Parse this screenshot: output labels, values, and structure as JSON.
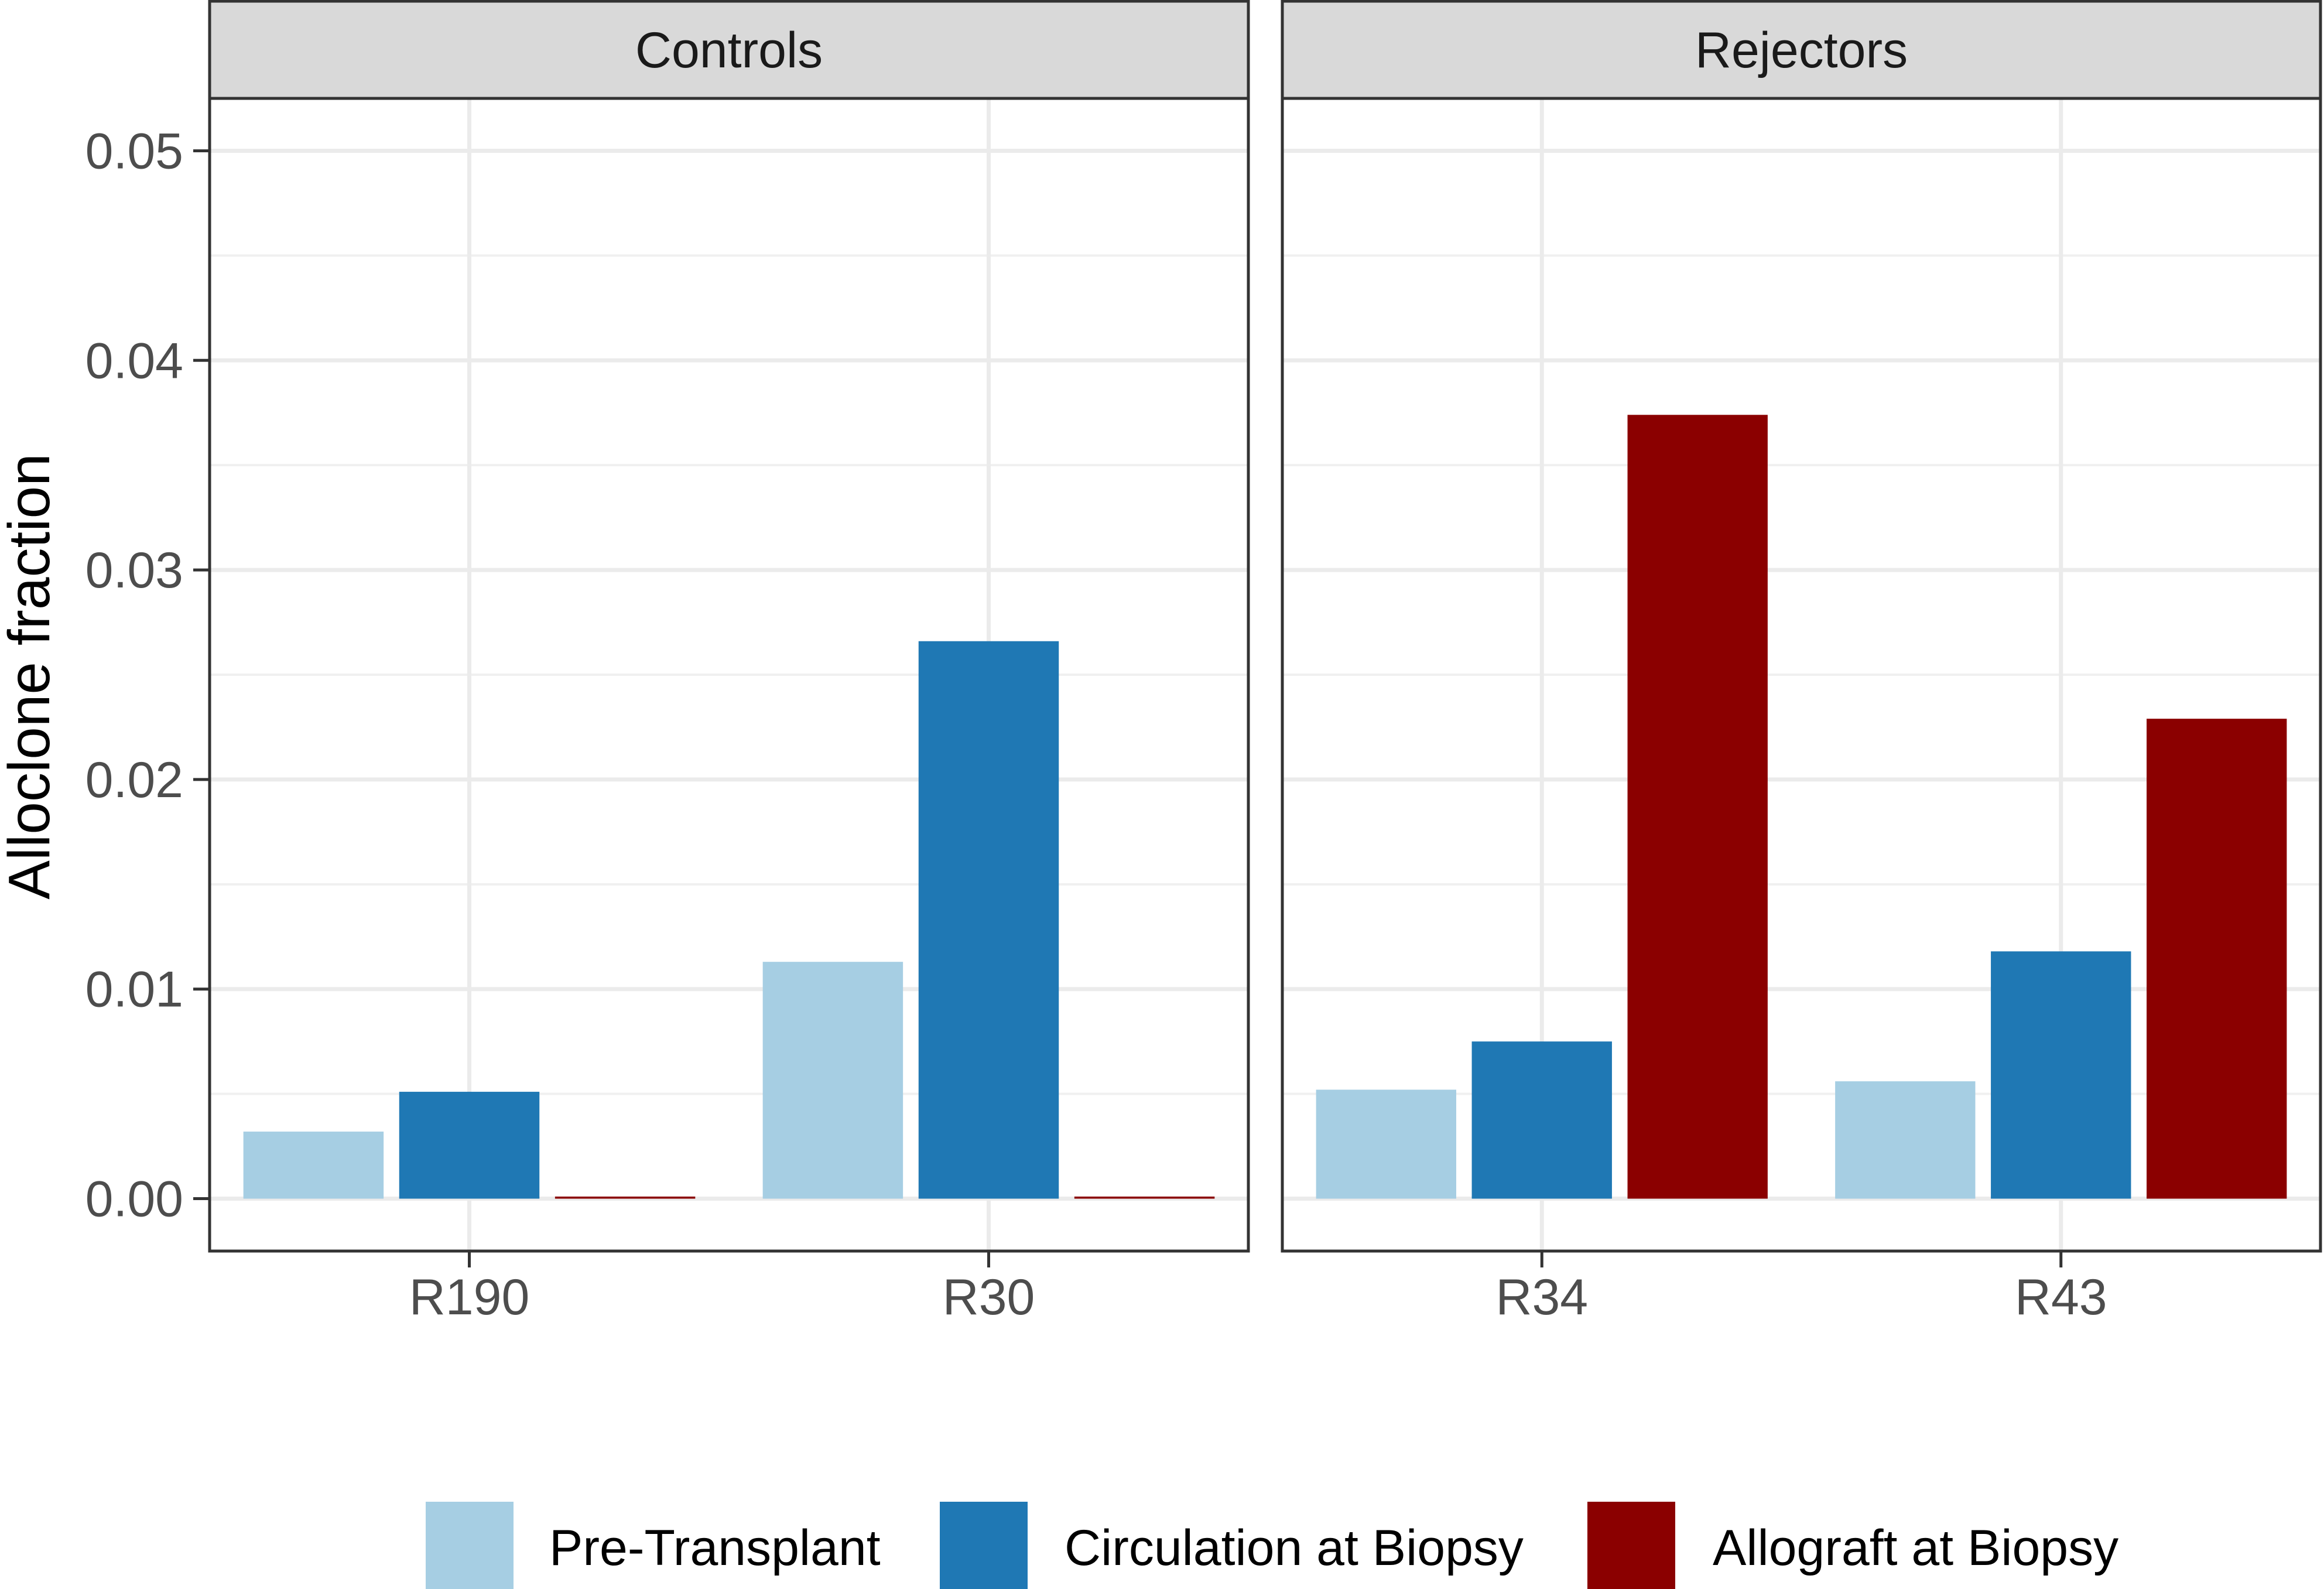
{
  "chart_data": {
    "type": "bar",
    "ylabel": "Alloclone fraction",
    "ylim": [
      -0.0025,
      0.0525
    ],
    "yticks": [
      0.0,
      0.01,
      0.02,
      0.03,
      0.04,
      0.05
    ],
    "ytick_labels": [
      "0.00",
      "0.01",
      "0.02",
      "0.03",
      "0.04",
      "0.05"
    ],
    "grid": true,
    "legend_position": "bottom",
    "series": [
      {
        "name": "Pre-Transplant",
        "color": "#a6cee3"
      },
      {
        "name": "Circulation at Biopsy",
        "color": "#1f78b4"
      },
      {
        "name": "Allograft at Biopsy",
        "color": "#8b0000"
      }
    ],
    "facets": [
      {
        "title": "Controls",
        "categories": [
          "R190",
          "R30"
        ],
        "values": {
          "Pre-Transplant": [
            0.0032,
            0.0113
          ],
          "Circulation at Biopsy": [
            0.0051,
            0.0266
          ],
          "Allograft at Biopsy": [
            0.0001,
            0.0001
          ]
        }
      },
      {
        "title": "Rejectors",
        "categories": [
          "R34",
          "R43"
        ],
        "values": {
          "Pre-Transplant": [
            0.0052,
            0.0056
          ],
          "Circulation at Biopsy": [
            0.0075,
            0.0118
          ],
          "Allograft at Biopsy": [
            0.0374,
            0.0229
          ]
        }
      }
    ]
  }
}
